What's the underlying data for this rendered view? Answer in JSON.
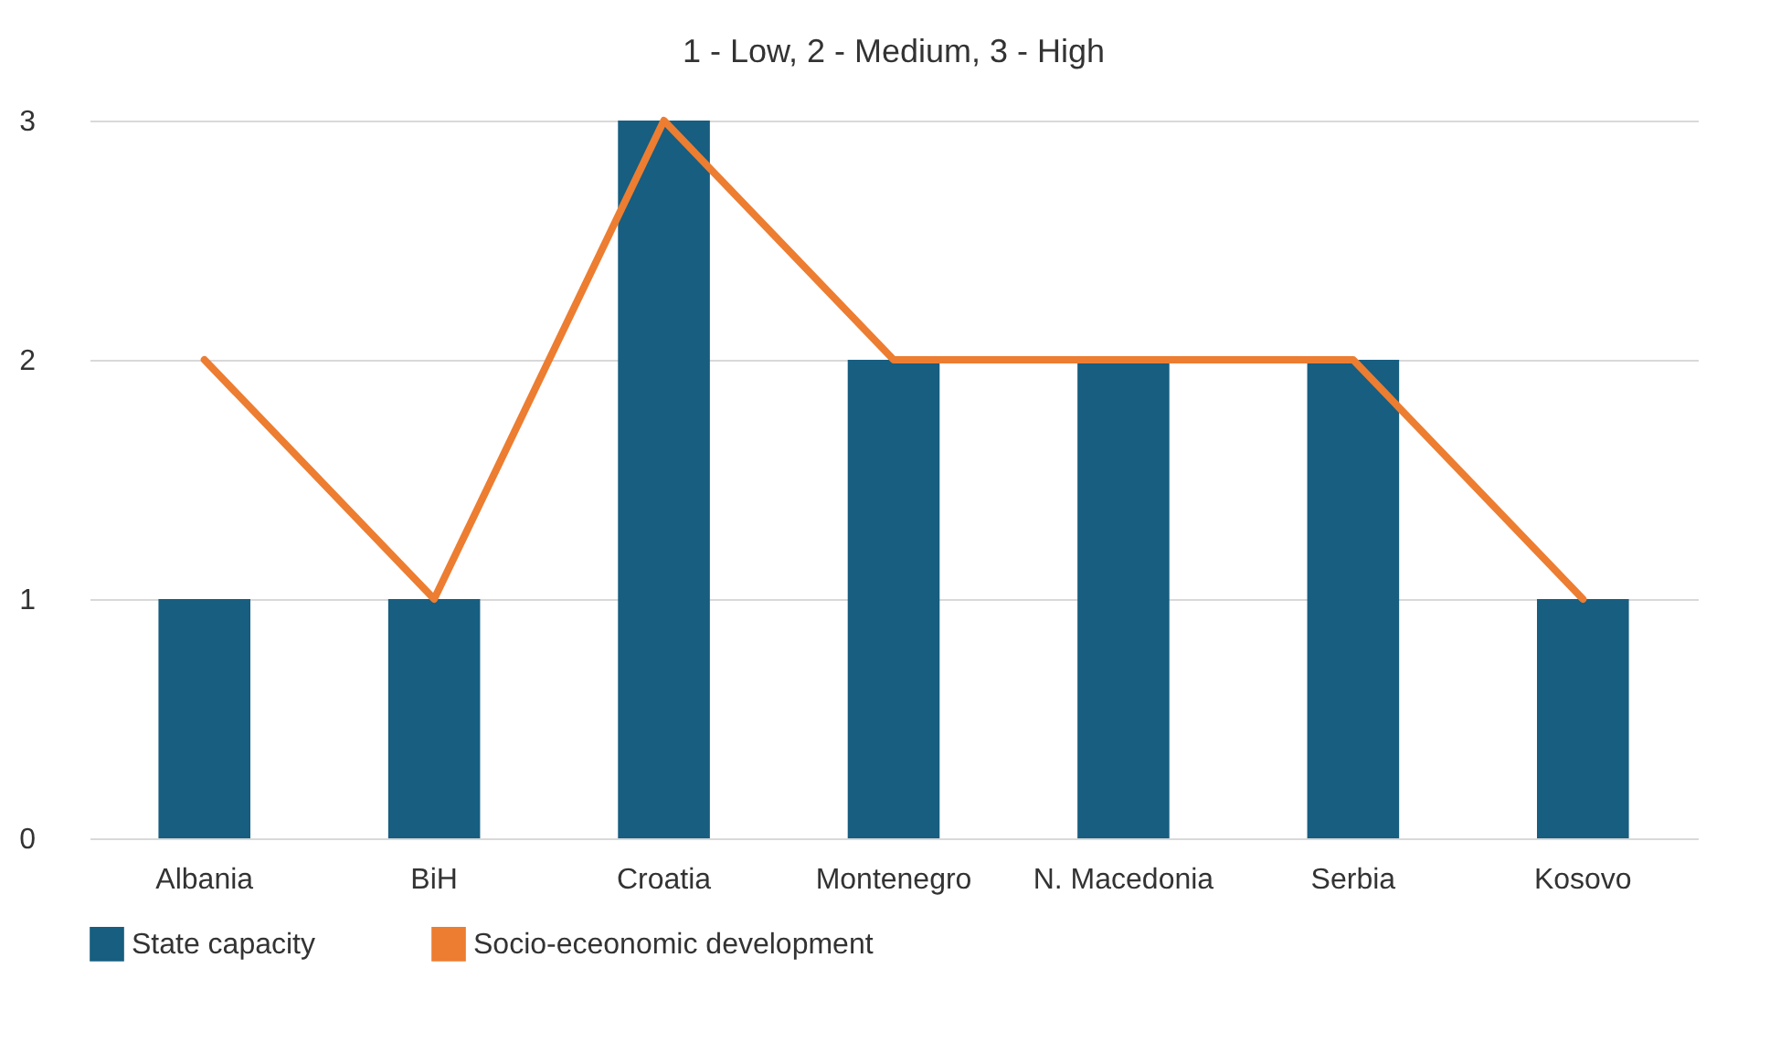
{
  "chart_data": {
    "type": "bar",
    "title": "1 - Low, 2 - Medium, 3 - High",
    "categories": [
      "Albania",
      "BiH",
      "Croatia",
      "Montenegro",
      "N. Macedonia",
      "Serbia",
      "Kosovo"
    ],
    "series": [
      {
        "name": "State capacity",
        "color": "#175e80",
        "values": [
          1,
          1,
          3,
          2,
          2,
          2,
          1
        ]
      },
      {
        "name": "Socio-eceonomic development",
        "type": "line",
        "color": "#ed7d31",
        "values": [
          2,
          1,
          3,
          2,
          2,
          2,
          1
        ]
      }
    ],
    "ylim": [
      0,
      3
    ],
    "yticks": [
      0,
      1,
      2,
      3
    ],
    "grid": "y",
    "legend": "bottom",
    "marker": "none",
    "line_style": "solid"
  }
}
